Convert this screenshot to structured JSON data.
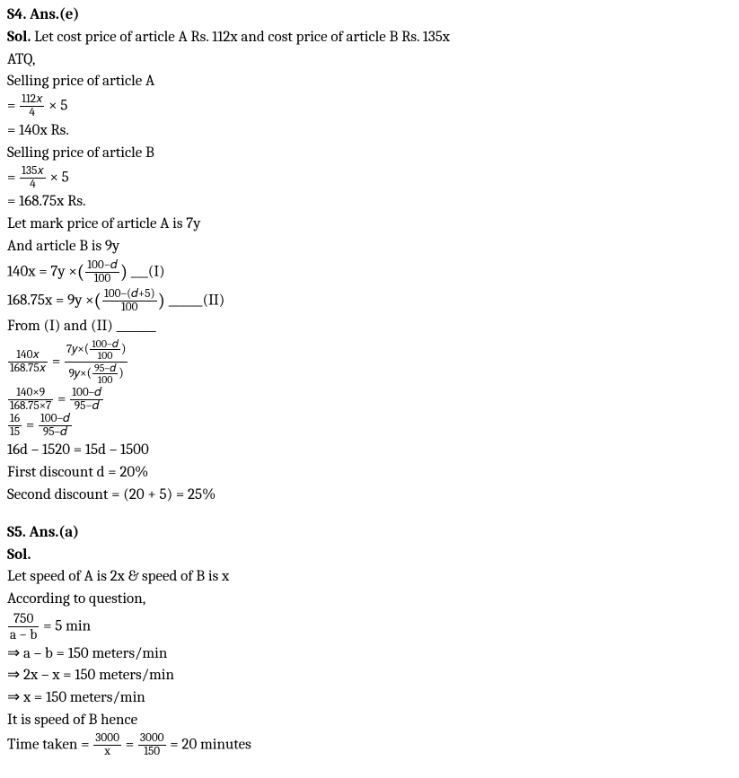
{
  "s4": {
    "heading": "S4. Ans.(e)",
    "sol_label": "Sol.",
    "intro": " Let cost price of article A Rs. 112x and cost price of article B Rs. 135x",
    "atq": "ATQ,",
    "sp_a_label": "Selling price of article A",
    "eq_a_num": "112𝑥",
    "eq_a_den": "4",
    "eq_a_tail": " × 5",
    "eq_a_result": "= 140x Rs.",
    "sp_b_label": "Selling price of article B",
    "eq_b_num": "135𝑥",
    "eq_b_den": "4",
    "eq_b_tail": " × 5",
    "eq_b_result": "= 168.75x Rs.",
    "mp_a": "Let mark price of article A is 7y",
    "mp_b": "And article B is 9y",
    "eqI_left": "140x = 7y ×",
    "eqI_num": "100−𝑑",
    "eqI_den": "100",
    "eqI_tag": " ___(I)",
    "eqII_left": "168.75x = 9y ×",
    "eqII_num": "100–(𝑑+5)",
    "eqII_den": "100",
    "eqII_tag": " ______(II)",
    "from": "From (I) and (II) _______",
    "frac1_l_num": "140𝑥",
    "frac1_l_den": "168.75𝑥",
    "eq": " = ",
    "frac1_r_num_a": "7𝑦×",
    "frac1_r_inner_num": "100–𝑑",
    "frac1_r_inner_den": "100",
    "frac1_r_den_a": "9𝑦×",
    "frac1_r_inner2_num": "95–𝑑",
    "frac1_r_inner2_den": "100",
    "frac2_l_num": "140×9",
    "frac2_l_den": "168.75×7",
    "frac2_r_num": "100–𝑑",
    "frac2_r_den": "95−𝑑",
    "frac3_l_num": "16",
    "frac3_l_den": "15",
    "frac3_r_num": "100–𝑑",
    "frac3_r_den": "95–𝑑",
    "line_16d": "16d – 1520 = 15d – 1500",
    "first_disc": "First discount d = 20%",
    "second_disc": "Second discount = (20 + 5) = 25%"
  },
  "s5": {
    "heading": "S5. Ans.(a)",
    "sol_label": "Sol.",
    "let": "Let speed of A is 2x & speed of B is x",
    "acc": "According to question,",
    "f_num": "750",
    "f_den": "a − b",
    "f_tail": " = 5 min",
    "l1": "⇒ a – b = 150 meters/min",
    "l2": "⇒ 2x – x = 150 meters/min",
    "l3": "⇒ x = 150 meters/min",
    "l4": "It is speed of B hence",
    "tt_label": "Time taken = ",
    "tt_num1": "3000",
    "tt_den1": "x",
    "tt_num2": "3000",
    "tt_den2": "150",
    "tt_result": " = 20 minutes"
  }
}
